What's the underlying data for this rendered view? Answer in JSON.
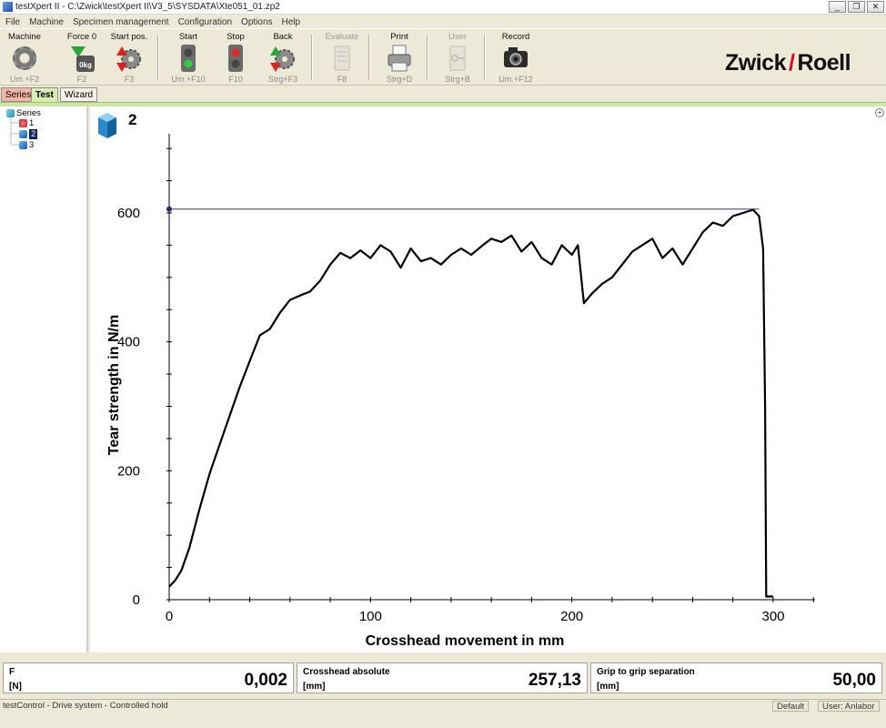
{
  "window": {
    "title": "testXpert II  - C:\\Zwick\\testXpert II\\V3_5\\SYSDATA\\Xte051_01.zp2",
    "minimize": "_",
    "restore": "❐",
    "close": "✕"
  },
  "menu": [
    "File",
    "Machine",
    "Specimen management",
    "Configuration",
    "Options",
    "Help"
  ],
  "toolbar": [
    {
      "label": "Machine",
      "key": "Um.+F2",
      "icon": "gear-icon",
      "enabled": true
    },
    {
      "label": "Force 0",
      "key": "F2",
      "icon": "force-zero-icon",
      "enabled": true
    },
    {
      "label": "Start pos.",
      "key": "F3",
      "icon": "start-position-icon",
      "enabled": true
    },
    {
      "label": "Start",
      "key": "Um.+F10",
      "icon": "traffic-light-green-icon",
      "enabled": true
    },
    {
      "label": "Stop",
      "key": "F10",
      "icon": "traffic-light-red-icon",
      "enabled": true
    },
    {
      "label": "Back",
      "key": "Strg+F3",
      "icon": "back-icon",
      "enabled": true
    },
    {
      "label": "Evaluate",
      "key": "F8",
      "icon": "evaluate-icon",
      "enabled": false
    },
    {
      "label": "Print",
      "key": "Strg+D",
      "icon": "printer-icon",
      "enabled": true
    },
    {
      "label": "User",
      "key": "Strg+B",
      "icon": "user-key-icon",
      "enabled": false
    },
    {
      "label": "Record",
      "key": "Um.+F12",
      "icon": "camera-icon",
      "enabled": true
    }
  ],
  "logo": {
    "left": "Zwick",
    "right": "Roell"
  },
  "tabs": [
    "Series",
    "Test",
    "Wizard"
  ],
  "tree": {
    "root": "Series",
    "items": [
      "1",
      "2",
      "3"
    ]
  },
  "plot": {
    "specimen_label": "2",
    "zoom_label": "+"
  },
  "chart_data": {
    "type": "line",
    "xlabel": "Crosshead movement in mm",
    "ylabel": "Tear strength in N/m",
    "xlim": [
      0,
      320
    ],
    "ylim": [
      0,
      720
    ],
    "xticks": [
      0,
      100,
      200,
      300
    ],
    "yticks": [
      0,
      200,
      400,
      600
    ],
    "max_line": 606,
    "series": [
      {
        "color": "#000000",
        "x": [
          0,
          3,
          6,
          10,
          15,
          20,
          25,
          30,
          35,
          40,
          45,
          50,
          55,
          60,
          65,
          70,
          75,
          80,
          85,
          90,
          95,
          100,
          105,
          110,
          115,
          120,
          125,
          130,
          135,
          140,
          145,
          150,
          155,
          160,
          165,
          170,
          175,
          180,
          185,
          190,
          195,
          200,
          203,
          206,
          210,
          215,
          220,
          225,
          230,
          235,
          240,
          245,
          250,
          255,
          260,
          265,
          270,
          275,
          280,
          285,
          290,
          293,
          295,
          296,
          296.5,
          298,
          300
        ],
        "y": [
          20,
          30,
          45,
          80,
          140,
          195,
          240,
          285,
          330,
          370,
          410,
          420,
          445,
          465,
          472,
          478,
          495,
          520,
          538,
          530,
          542,
          530,
          550,
          540,
          515,
          545,
          525,
          530,
          520,
          535,
          545,
          535,
          548,
          560,
          555,
          565,
          540,
          555,
          530,
          520,
          550,
          535,
          550,
          460,
          475,
          490,
          500,
          520,
          540,
          550,
          560,
          530,
          545,
          520,
          545,
          570,
          585,
          580,
          595,
          600,
          605,
          595,
          545,
          300,
          5,
          5,
          5
        ]
      }
    ]
  },
  "values": [
    {
      "name": "F",
      "unit": "[N]",
      "value": "0,002"
    },
    {
      "name": "Crosshead absolute",
      "unit": "[mm]",
      "value": "257,13"
    },
    {
      "name": "Grip to grip separation",
      "unit": "[mm]",
      "value": "50,00"
    }
  ],
  "status": {
    "text": "testControl - Drive system - Controlled hold",
    "default_label": "Default",
    "user": "User: Anlabor"
  },
  "colors": {
    "accent_green": "#cfe6a8",
    "max_line": "#5a5aa6",
    "logo_slash": "#e2001a"
  }
}
